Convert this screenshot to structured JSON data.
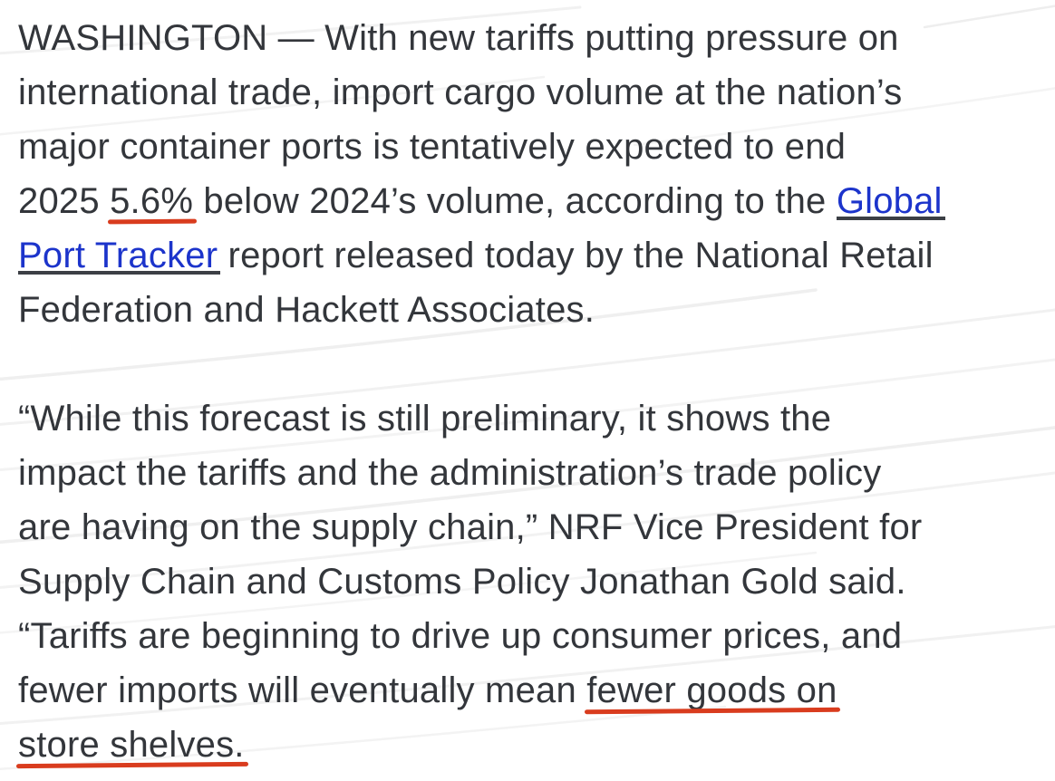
{
  "page": {
    "background": "#ffffff",
    "texture": "faint-diagonal-lines"
  },
  "colors": {
    "text": "#33363b",
    "link_blue": "#1c34cb",
    "link_underline": "#3c3f45",
    "annotation_red": "#d93c1e"
  },
  "article": {
    "link": {
      "text": "Global Port Tracker",
      "color": "#1c34cb"
    },
    "annotations": [
      {
        "text": "5.6%",
        "style": "red-underline"
      },
      {
        "text": "fewer goods on store shelves.",
        "style": "red-underline"
      }
    ],
    "paragraphs": [
      {
        "name": "paragraph-1",
        "lines": [
          [
            {
              "text": "WASHINGTON — With new tariffs putting pressure on"
            }
          ],
          [
            {
              "text": "international trade, import cargo volume at the nation’s"
            }
          ],
          [
            {
              "text": "major container ports is tentatively expected to end"
            }
          ],
          [
            {
              "text": "2025 "
            },
            {
              "text": "5.6%",
              "kind": "red-underline",
              "name": "annotation-5-6-percent"
            },
            {
              "text": " below 2024’s volume, according to the "
            },
            {
              "text": "Global",
              "kind": "link"
            }
          ],
          [
            {
              "text": "Port Tracker",
              "kind": "link"
            },
            {
              "text": " report released today by the National Retail"
            }
          ],
          [
            {
              "text": "Federation and Hackett Associates."
            }
          ]
        ]
      },
      {
        "name": "paragraph-2",
        "lines": [
          [
            {
              "text": "“While this forecast is still preliminary, it shows the"
            }
          ],
          [
            {
              "text": "impact the tariffs and the administration’s trade policy"
            }
          ],
          [
            {
              "text": "are having on the supply chain,” NRF Vice President for"
            }
          ],
          [
            {
              "text": "Supply Chain and Customs Policy Jonathan Gold said."
            }
          ],
          [
            {
              "text": "“Tariffs are beginning to drive up consumer prices, and"
            }
          ],
          [
            {
              "text": "fewer imports will eventually mean "
            },
            {
              "text": "fewer goods on",
              "kind": "red-underline",
              "name": "annotation-fewer-goods-on"
            }
          ],
          [
            {
              "text": "store shelves.",
              "kind": "red-underline",
              "name": "annotation-store-shelves"
            }
          ]
        ]
      }
    ]
  }
}
